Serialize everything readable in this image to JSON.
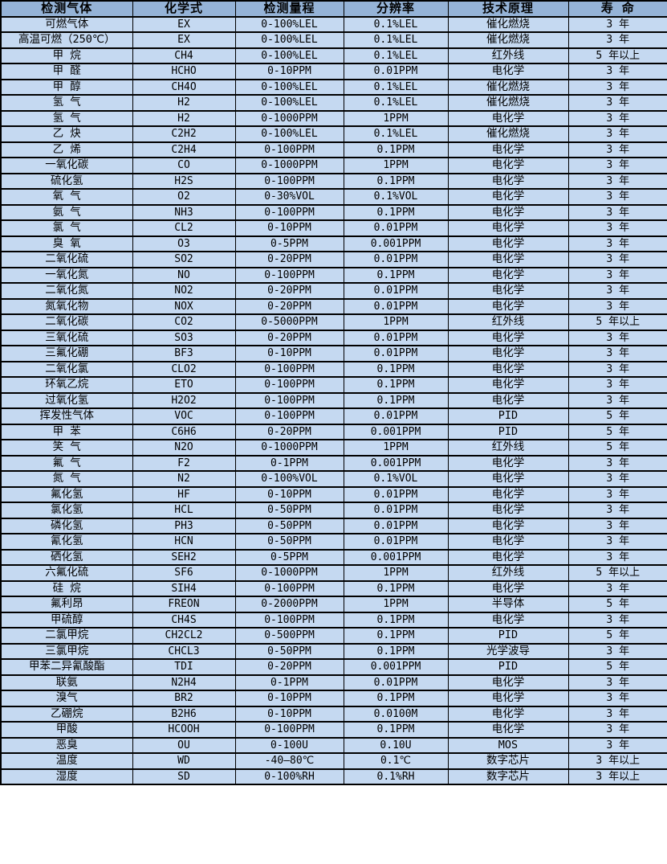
{
  "colors": {
    "header_bg": "#95B3D7",
    "row_bg": "#C5D9F1",
    "border": "#000000",
    "text": "#000000"
  },
  "table": {
    "headers": [
      "检测气体",
      "化学式",
      "检测量程",
      "分辨率",
      "技术原理",
      "寿 命"
    ],
    "rows": [
      [
        "可燃气体",
        "EX",
        "0-100%LEL",
        "0.1%LEL",
        "催化燃烧",
        "3 年"
      ],
      [
        "高温可燃（250℃）",
        "EX",
        "0-100%LEL",
        "0.1%LEL",
        "催化燃烧",
        "3 年"
      ],
      [
        "甲 烷",
        "CH4",
        "0-100%LEL",
        "0.1%LEL",
        "红外线",
        "5 年以上"
      ],
      [
        "甲 醛",
        "HCHO",
        "0-10PPM",
        "0.01PPM",
        "电化学",
        "3 年"
      ],
      [
        "甲 醇",
        "CH4O",
        "0-100%LEL",
        "0.1%LEL",
        "催化燃烧",
        "3 年"
      ],
      [
        "氢 气",
        "H2",
        "0-100%LEL",
        "0.1%LEL",
        "催化燃烧",
        "3 年"
      ],
      [
        "氢 气",
        "H2",
        "0-1000PPM",
        "1PPM",
        "电化学",
        "3 年"
      ],
      [
        "乙 炔",
        "C2H2",
        "0-100%LEL",
        "0.1%LEL",
        "催化燃烧",
        "3 年"
      ],
      [
        "乙 烯",
        "C2H4",
        "0-100PPM",
        "0.1PPM",
        "电化学",
        "3 年"
      ],
      [
        "一氧化碳",
        "CO",
        "0-1000PPM",
        "1PPM",
        "电化学",
        "3 年"
      ],
      [
        "硫化氢",
        "H2S",
        "0-100PPM",
        "0.1PPM",
        "电化学",
        "3 年"
      ],
      [
        "氧 气",
        "O2",
        "0-30%VOL",
        "0.1%VOL",
        "电化学",
        "3 年"
      ],
      [
        "氨 气",
        "NH3",
        "0-100PPM",
        "0.1PPM",
        "电化学",
        "3 年"
      ],
      [
        "氯 气",
        "CL2",
        "0-10PPM",
        "0.01PPM",
        "电化学",
        "3 年"
      ],
      [
        "臭 氧",
        "O3",
        "0-5PPM",
        "0.001PPM",
        "电化学",
        "3 年"
      ],
      [
        "二氧化硫",
        "SO2",
        "0-20PPM",
        "0.01PPM",
        "电化学",
        "3 年"
      ],
      [
        "一氧化氮",
        "NO",
        "0-100PPM",
        "0.1PPM",
        "电化学",
        "3 年"
      ],
      [
        "二氧化氮",
        "NO2",
        "0-20PPM",
        "0.01PPM",
        "电化学",
        "3 年"
      ],
      [
        "氮氧化物",
        "NOX",
        "0-20PPM",
        "0.01PPM",
        "电化学",
        "3 年"
      ],
      [
        "二氧化碳",
        "CO2",
        "0-5000PPM",
        "1PPM",
        "红外线",
        "5 年以上"
      ],
      [
        "三氧化硫",
        "SO3",
        "0-20PPM",
        "0.01PPM",
        "电化学",
        "3 年"
      ],
      [
        "三氟化硼",
        "BF3",
        "0-10PPM",
        "0.01PPM",
        "电化学",
        "3 年"
      ],
      [
        "二氧化氯",
        "CLO2",
        "0-100PPM",
        "0.1PPM",
        "电化学",
        "3 年"
      ],
      [
        "环氧乙烷",
        "ETO",
        "0-100PPM",
        "0.1PPM",
        "电化学",
        "3 年"
      ],
      [
        "过氧化氢",
        "H2O2",
        "0-100PPM",
        "0.1PPM",
        "电化学",
        "3 年"
      ],
      [
        "挥发性气体",
        "VOC",
        "0-100PPM",
        "0.01PPM",
        "PID",
        "5 年"
      ],
      [
        "甲 苯",
        "C6H6",
        "0-20PPM",
        "0.001PPM",
        "PID",
        "5 年"
      ],
      [
        "笑 气",
        "N2O",
        "0-1000PPM",
        "1PPM",
        "红外线",
        "5 年"
      ],
      [
        "氟 气",
        "F2",
        "0-1PPM",
        "0.001PPM",
        "电化学",
        "3 年"
      ],
      [
        "氮 气",
        "N2",
        "0-100%VOL",
        "0.1%VOL",
        "电化学",
        "3 年"
      ],
      [
        "氟化氢",
        "HF",
        "0-10PPM",
        "0.01PPM",
        "电化学",
        "3 年"
      ],
      [
        "氯化氢",
        "HCL",
        "0-50PPM",
        "0.01PPM",
        "电化学",
        "3 年"
      ],
      [
        "磷化氢",
        "PH3",
        "0-50PPM",
        "0.01PPM",
        "电化学",
        "3 年"
      ],
      [
        "氰化氢",
        "HCN",
        "0-50PPM",
        "0.01PPM",
        "电化学",
        "3 年"
      ],
      [
        "硒化氢",
        "SEH2",
        "0-5PPM",
        "0.001PPM",
        "电化学",
        "3 年"
      ],
      [
        "六氟化硫",
        "SF6",
        "0-1000PPM",
        "1PPM",
        "红外线",
        "5 年以上"
      ],
      [
        "硅 烷",
        "SIH4",
        "0-100PPM",
        "0.1PPM",
        "电化学",
        "3 年"
      ],
      [
        "氟利昂",
        "FREON",
        "0-2000PPM",
        "1PPM",
        "半导体",
        "5 年"
      ],
      [
        "甲硫醇",
        "CH4S",
        "0-100PPM",
        "0.1PPM",
        "电化学",
        "3 年"
      ],
      [
        "二氯甲烷",
        "CH2CL2",
        "0-500PPM",
        "0.1PPM",
        "PID",
        "5 年"
      ],
      [
        "三氯甲烷",
        "CHCL3",
        "0-50PPM",
        "0.1PPM",
        "光学波导",
        "3 年"
      ],
      [
        "甲苯二异氰酸酯",
        "TDI",
        "0-20PPM",
        "0.001PPM",
        "PID",
        "5 年"
      ],
      [
        "联氨",
        "N2H4",
        "0-1PPM",
        "0.01PPM",
        "电化学",
        "3 年"
      ],
      [
        "溴气",
        "BR2",
        "0-10PPM",
        "0.1PPM",
        "电化学",
        "3 年"
      ],
      [
        "乙硼烷",
        "B2H6",
        "0-10PPM",
        "0.0100M",
        "电化学",
        "3 年"
      ],
      [
        "甲酸",
        "HCOOH",
        "0-100PPM",
        "0.1PPM",
        "电化学",
        "3 年"
      ],
      [
        "恶臭",
        "OU",
        "0-100U",
        "0.10U",
        "MOS",
        "3 年"
      ],
      [
        "温度",
        "WD",
        "-40—80℃",
        "0.1℃",
        "数字芯片",
        "3 年以上"
      ],
      [
        "湿度",
        "SD",
        "0-100%RH",
        "0.1%RH",
        "数字芯片",
        "3 年以上"
      ]
    ]
  }
}
